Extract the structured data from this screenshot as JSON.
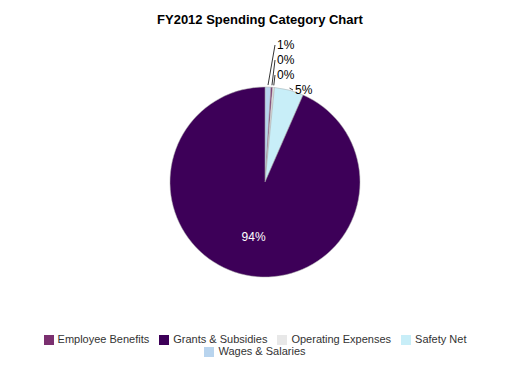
{
  "chart_data": {
    "type": "pie",
    "title": "FY2012 Spending Category Chart",
    "categories": [
      "Wages & Salaries",
      "Employee Benefits",
      "Operating Expenses",
      "Safety Net",
      "Grants & Subsidies"
    ],
    "values": [
      1,
      0.3,
      0.3,
      5,
      94
    ],
    "value_labels": [
      "1%",
      "0%",
      "0%",
      "5%",
      "94%"
    ],
    "colors": [
      "#b8d4ee",
      "#7b3070",
      "#e8e8e8",
      "#c8eef8",
      "#3d0058"
    ],
    "data_labels": true,
    "legend": "bottom"
  }
}
